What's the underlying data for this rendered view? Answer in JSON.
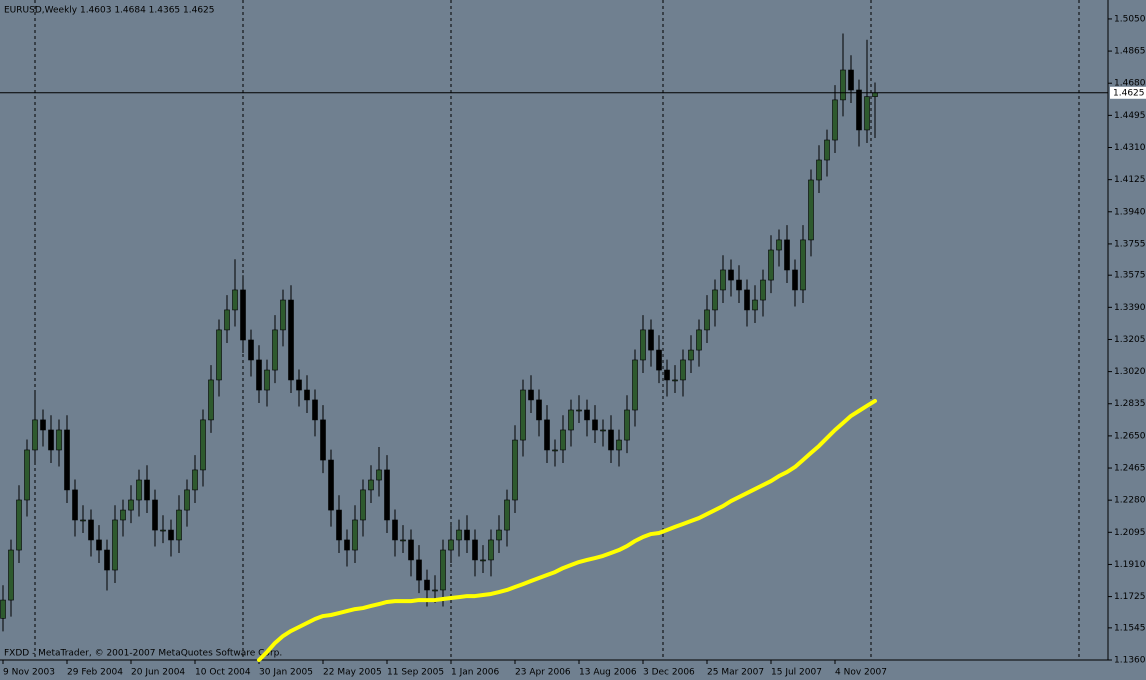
{
  "chart_data": {
    "type": "candlestick",
    "title": "EURUSD,Weekly  1.4603 1.4684 1.4365 1.4625",
    "footer": "FXDD - MetaTrader, © 2001-2007 MetaQuotes Software Corp.",
    "categories": [
      "9 Nov 2003",
      null,
      null,
      null,
      null,
      null,
      null,
      null,
      "29 Feb 2004",
      null,
      null,
      null,
      null,
      null,
      null,
      null,
      "20 Jun 2004",
      null,
      null,
      null,
      null,
      null,
      null,
      null,
      "10 Oct 2004",
      null,
      null,
      null,
      null,
      null,
      null,
      null,
      "30 Jan 2005",
      null,
      null,
      null,
      null,
      null,
      null,
      null,
      "22 May 2005",
      null,
      null,
      null,
      null,
      null,
      null,
      null,
      "11 Sep 2005",
      null,
      null,
      null,
      null,
      null,
      null,
      null,
      "1 Jan 2006",
      null,
      null,
      null,
      null,
      null,
      null,
      null,
      "23 Apr 2006",
      null,
      null,
      null,
      null,
      null,
      null,
      null,
      "13 Aug 2006",
      null,
      null,
      null,
      null,
      null,
      null,
      null,
      "3 Dec 2006",
      null,
      null,
      null,
      null,
      null,
      null,
      null,
      "25 Mar 2007",
      null,
      null,
      null,
      null,
      null,
      null,
      null,
      "15 Jul 2007",
      null,
      null,
      null,
      null,
      null,
      null,
      null,
      "4 Nov 2007",
      null,
      null,
      null,
      null,
      null
    ],
    "open": [
      1.16,
      1.1705,
      1.1993,
      1.2281,
      1.2569,
      1.2742,
      1.2684,
      1.2569,
      1.2684,
      1.2339,
      1.2166,
      1.2166,
      1.2051,
      1.1993,
      1.1878,
      1.2166,
      1.2223,
      1.2281,
      1.2396,
      1.2281,
      1.2108,
      1.2108,
      1.2051,
      1.2223,
      1.2339,
      1.2454,
      1.2742,
      1.2972,
      1.326,
      1.3375,
      1.349,
      1.3202,
      1.3087,
      1.2914,
      1.3029,
      1.326,
      1.3432,
      1.2972,
      1.2914,
      1.2857,
      1.2742,
      1.2511,
      1.2223,
      1.2051,
      1.1993,
      1.2166,
      1.2339,
      1.2396,
      1.2454,
      1.2166,
      1.2051,
      1.2051,
      1.1936,
      1.182,
      1.1763,
      1.1763,
      1.1993,
      1.2051,
      1.2108,
      1.2051,
      1.1936,
      1.1936,
      1.2051,
      1.2108,
      1.2281,
      1.2626,
      1.2914,
      1.2857,
      1.2742,
      1.2569,
      1.2569,
      1.2684,
      1.2799,
      1.2799,
      1.2742,
      1.2684,
      1.2684,
      1.2569,
      1.2626,
      1.2799,
      1.3087,
      1.326,
      1.3144,
      1.3029,
      1.2972,
      1.2972,
      1.3087,
      1.3144,
      1.326,
      1.3375,
      1.349,
      1.3605,
      1.3547,
      1.349,
      1.3375,
      1.3432,
      1.3547,
      1.372,
      1.3778,
      1.3605,
      1.349,
      1.3778,
      1.4123,
      1.4238,
      1.4353,
      1.4584,
      1.4756,
      1.4641,
      1.4411,
      1.4603
    ],
    "high": [
      1.179,
      1.2053,
      1.2366,
      1.2629,
      1.29,
      1.2802,
      1.2769,
      1.2744,
      1.2769,
      1.2399,
      1.2251,
      1.2226,
      1.2136,
      1.2053,
      1.2251,
      1.2283,
      1.2366,
      1.2456,
      1.2481,
      1.2341,
      1.2193,
      1.2168,
      1.2308,
      1.2399,
      1.2539,
      1.2802,
      1.3057,
      1.332,
      1.346,
      1.3667,
      1.3575,
      1.3262,
      1.3172,
      1.3089,
      1.3345,
      1.3492,
      1.3517,
      1.3032,
      1.2999,
      1.2917,
      1.2827,
      1.2571,
      1.2308,
      1.2111,
      1.2251,
      1.2399,
      1.2481,
      1.2586,
      1.2539,
      1.2226,
      1.2136,
      1.2111,
      1.2021,
      1.188,
      1.1848,
      1.2053,
      1.2136,
      1.2168,
      1.2193,
      1.2111,
      1.2021,
      1.2111,
      1.2193,
      1.2341,
      1.2711,
      1.2974,
      1.2999,
      1.2917,
      1.2827,
      1.2629,
      1.2769,
      1.2859,
      1.2884,
      1.2859,
      1.2827,
      1.2744,
      1.2769,
      1.2686,
      1.2884,
      1.3147,
      1.3345,
      1.332,
      1.3229,
      1.3089,
      1.3057,
      1.3147,
      1.3229,
      1.332,
      1.346,
      1.355,
      1.369,
      1.3665,
      1.3632,
      1.355,
      1.3517,
      1.3607,
      1.3805,
      1.3838,
      1.3863,
      1.3665,
      1.3863,
      1.4183,
      1.4323,
      1.4413,
      1.4669,
      1.4966,
      1.4841,
      1.4701,
      1.493,
      1.4684
    ],
    "low": [
      1.1525,
      1.161,
      1.1918,
      1.2186,
      1.2494,
      1.2589,
      1.2494,
      1.2474,
      1.2264,
      1.2071,
      1.2091,
      1.1956,
      1.1918,
      1.176,
      1.1803,
      1.2071,
      1.2148,
      1.2186,
      1.2206,
      1.2013,
      1.2033,
      1.1956,
      1.1976,
      1.2128,
      1.2264,
      1.2359,
      1.2667,
      1.2877,
      1.3185,
      1.328,
      1.3127,
      1.2992,
      1.2839,
      1.2819,
      1.2954,
      1.3165,
      1.2897,
      1.2819,
      1.2782,
      1.2647,
      1.2436,
      1.2128,
      1.1976,
      1.1898,
      1.1918,
      1.2071,
      1.2264,
      1.2301,
      1.2091,
      1.1956,
      1.1976,
      1.1841,
      1.1745,
      1.1668,
      1.1688,
      1.1668,
      1.1918,
      1.1956,
      1.1976,
      1.1841,
      1.1861,
      1.1841,
      1.1976,
      1.2013,
      1.2206,
      1.2531,
      1.2782,
      1.2647,
      1.2494,
      1.2474,
      1.2494,
      1.2589,
      1.2724,
      1.2647,
      1.2609,
      1.2589,
      1.2494,
      1.2474,
      1.2551,
      1.2704,
      1.3012,
      1.3049,
      1.2954,
      1.2877,
      1.2897,
      1.2877,
      1.3012,
      1.3049,
      1.3185,
      1.328,
      1.3415,
      1.3452,
      1.3415,
      1.328,
      1.33,
      1.3337,
      1.3472,
      1.3625,
      1.353,
      1.3395,
      1.3415,
      1.3683,
      1.4048,
      1.4143,
      1.4278,
      1.4489,
      1.4566,
      1.4316,
      1.4336,
      1.4365
    ],
    "close": [
      1.1705,
      1.1993,
      1.2281,
      1.2569,
      1.2742,
      1.2684,
      1.2569,
      1.2684,
      1.2339,
      1.2166,
      1.2166,
      1.2051,
      1.1993,
      1.1878,
      1.2166,
      1.2223,
      1.2281,
      1.2396,
      1.2281,
      1.2108,
      1.2108,
      1.2051,
      1.2223,
      1.2339,
      1.2454,
      1.2742,
      1.2972,
      1.326,
      1.3375,
      1.349,
      1.3202,
      1.3087,
      1.2914,
      1.3029,
      1.326,
      1.3432,
      1.2972,
      1.2914,
      1.2857,
      1.2742,
      1.2511,
      1.2223,
      1.2051,
      1.1993,
      1.2166,
      1.2339,
      1.2396,
      1.2454,
      1.2166,
      1.2051,
      1.2051,
      1.1936,
      1.182,
      1.1763,
      1.1763,
      1.1993,
      1.2051,
      1.2108,
      1.2051,
      1.1936,
      1.1936,
      1.2051,
      1.2108,
      1.2281,
      1.2626,
      1.2914,
      1.2857,
      1.2742,
      1.2569,
      1.2569,
      1.2684,
      1.2799,
      1.2799,
      1.2742,
      1.2684,
      1.2684,
      1.2569,
      1.2626,
      1.2799,
      1.3087,
      1.326,
      1.3144,
      1.3029,
      1.2972,
      1.2972,
      1.3087,
      1.3144,
      1.326,
      1.3375,
      1.349,
      1.3605,
      1.3547,
      1.349,
      1.3375,
      1.3432,
      1.3547,
      1.372,
      1.3778,
      1.3605,
      1.349,
      1.3778,
      1.4123,
      1.4238,
      1.4353,
      1.4584,
      1.4756,
      1.4641,
      1.4411,
      1.4603,
      1.4625
    ],
    "up_color": "#2e5a2e",
    "down_color": "#000000",
    "ma": {
      "color": "#ffff00",
      "values": [
        null,
        null,
        null,
        null,
        null,
        null,
        null,
        null,
        null,
        null,
        null,
        null,
        null,
        null,
        null,
        null,
        null,
        null,
        null,
        null,
        null,
        null,
        null,
        null,
        null,
        null,
        null,
        null,
        null,
        null,
        null,
        null,
        1.136,
        1.1406,
        1.1458,
        1.1498,
        1.1527,
        1.155,
        1.1573,
        1.1596,
        1.1613,
        1.1619,
        1.163,
        1.1642,
        1.1653,
        1.1659,
        1.1671,
        1.1682,
        1.1694,
        1.1699,
        1.1699,
        1.1699,
        1.1705,
        1.1705,
        1.1705,
        1.1711,
        1.1717,
        1.1722,
        1.1728,
        1.1728,
        1.1734,
        1.174,
        1.1751,
        1.1763,
        1.178,
        1.1797,
        1.1815,
        1.1832,
        1.1849,
        1.1866,
        1.1889,
        1.1907,
        1.1924,
        1.1936,
        1.1947,
        1.1959,
        1.1976,
        1.1993,
        1.2016,
        1.2045,
        1.2068,
        1.2085,
        1.2091,
        1.2108,
        1.2126,
        1.2143,
        1.216,
        1.2177,
        1.22,
        1.2223,
        1.2246,
        1.2275,
        1.2298,
        1.2321,
        1.2344,
        1.2367,
        1.239,
        1.2419,
        1.2442,
        1.2471,
        1.2511,
        1.2552,
        1.2592,
        1.2638,
        1.2684,
        1.2724,
        1.2765,
        1.2794,
        1.2823,
        1.2851
      ]
    },
    "price_line": {
      "value": 1.4625,
      "label": "1.4625"
    },
    "ylim": [
      1.136,
      1.5159
    ],
    "yticks": [
      {
        "value": 1.505,
        "label": "1.5050"
      },
      {
        "value": 1.4865,
        "label": "1.4865"
      },
      {
        "value": 1.468,
        "label": "1.4680"
      },
      {
        "value": 1.4495,
        "label": "1.4495"
      },
      {
        "value": 1.431,
        "label": "1.4310"
      },
      {
        "value": 1.4125,
        "label": "1.4125"
      },
      {
        "value": 1.394,
        "label": "1.3940"
      },
      {
        "value": 1.3755,
        "label": "1.3755"
      },
      {
        "value": 1.3575,
        "label": "1.3575"
      },
      {
        "value": 1.339,
        "label": "1.3390"
      },
      {
        "value": 1.3205,
        "label": "1.3205"
      },
      {
        "value": 1.302,
        "label": "1.3020"
      },
      {
        "value": 1.2835,
        "label": "1.2835"
      },
      {
        "value": 1.265,
        "label": "1.2650"
      },
      {
        "value": 1.2465,
        "label": "1.2465"
      },
      {
        "value": 1.228,
        "label": "1.2280"
      },
      {
        "value": 1.2095,
        "label": "1.2095"
      },
      {
        "value": 1.191,
        "label": "1.1910"
      },
      {
        "value": 1.1725,
        "label": "1.1725"
      },
      {
        "value": 1.1545,
        "label": "1.1545"
      },
      {
        "value": 1.136,
        "label": "1.1360"
      }
    ]
  }
}
